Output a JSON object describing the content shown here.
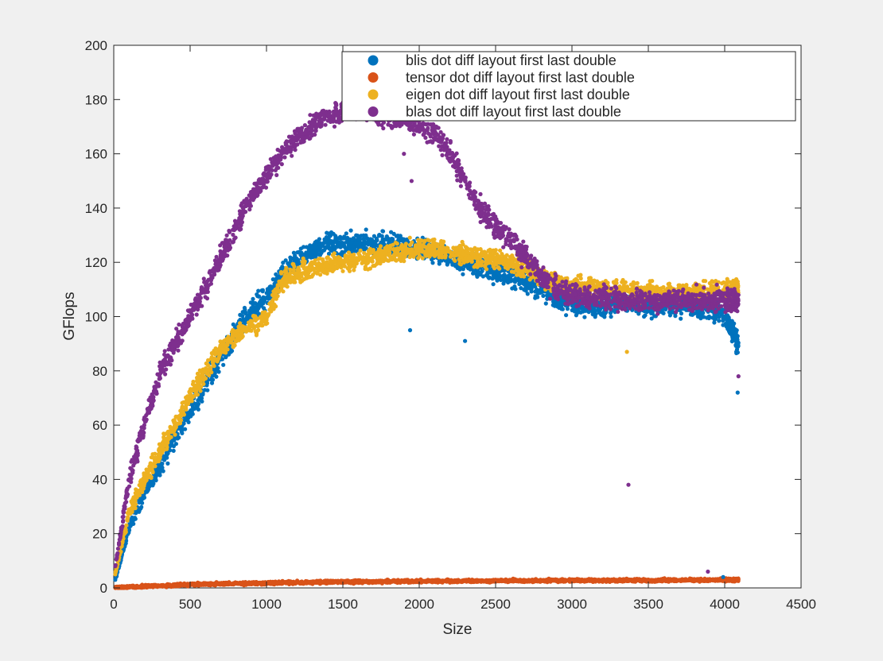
{
  "chart_data": {
    "type": "scatter",
    "xlabel": "Size",
    "ylabel": "GFlops",
    "xlim": [
      0,
      4500
    ],
    "ylim": [
      0,
      200
    ],
    "xticks": [
      0,
      500,
      1000,
      1500,
      2000,
      2500,
      3000,
      3500,
      4000,
      4500
    ],
    "yticks": [
      0,
      20,
      40,
      60,
      80,
      100,
      120,
      140,
      160,
      180,
      200
    ],
    "grid": false,
    "legend_position": "top-right",
    "series": [
      {
        "name": "blis dot diff layout first last double",
        "color": "#0072bd",
        "x": [
          10,
          100,
          200,
          300,
          400,
          500,
          600,
          700,
          800,
          900,
          1000,
          1100,
          1200,
          1300,
          1400,
          1500,
          1600,
          1700,
          1800,
          1900,
          2000,
          2100,
          2200,
          2300,
          2400,
          2500,
          2600,
          2700,
          2800,
          2900,
          3000,
          3100,
          3200,
          3300,
          3400,
          3500,
          3600,
          3700,
          3800,
          3900,
          4000,
          4050,
          4090
        ],
        "y": [
          3,
          22,
          35,
          45,
          56,
          65,
          76,
          85,
          94,
          102,
          107,
          115,
          120,
          124,
          127,
          126,
          127,
          127,
          127,
          126,
          125,
          124,
          122,
          120,
          118,
          117,
          115,
          113,
          110,
          107,
          105,
          104,
          104,
          105,
          105,
          104,
          104,
          104,
          104,
          103,
          100,
          95,
          90
        ]
      },
      {
        "name": "tensor dot diff layout first last double",
        "color": "#d95319",
        "x": [
          10,
          100,
          200,
          300,
          400,
          500,
          600,
          700,
          800,
          900,
          1000,
          1100,
          1200,
          1300,
          1400,
          1500,
          1600,
          1700,
          1800,
          1900,
          2000,
          2100,
          2200,
          2300,
          2400,
          2500,
          2600,
          2700,
          2800,
          2900,
          3000,
          3100,
          3200,
          3300,
          3400,
          3500,
          3600,
          3700,
          3800,
          3900,
          4000,
          4050,
          4090
        ],
        "y": [
          0.1,
          0.3,
          0.6,
          0.8,
          1.0,
          1.2,
          1.4,
          1.5,
          1.6,
          1.7,
          1.8,
          1.9,
          2.0,
          2.1,
          2.2,
          2.2,
          2.3,
          2.3,
          2.4,
          2.4,
          2.5,
          2.5,
          2.5,
          2.6,
          2.6,
          2.6,
          2.7,
          2.7,
          2.7,
          2.7,
          2.8,
          2.8,
          2.8,
          2.8,
          2.8,
          2.8,
          2.9,
          2.9,
          2.9,
          2.9,
          2.9,
          2.9,
          3.0
        ]
      },
      {
        "name": "eigen dot diff layout first last double",
        "color": "#edb120",
        "x": [
          10,
          100,
          200,
          300,
          400,
          500,
          600,
          700,
          800,
          900,
          1000,
          1100,
          1200,
          1300,
          1400,
          1500,
          1600,
          1700,
          1800,
          1900,
          2000,
          2100,
          2200,
          2300,
          2400,
          2500,
          2600,
          2700,
          2800,
          2900,
          3000,
          3100,
          3200,
          3300,
          3400,
          3500,
          3600,
          3700,
          3800,
          3900,
          4000,
          4050,
          4090
        ],
        "y": [
          5,
          28,
          40,
          50,
          60,
          70,
          80,
          88,
          93,
          97,
          100,
          113,
          116,
          118,
          119,
          120,
          121,
          122,
          123,
          124,
          125,
          125,
          124,
          123,
          122,
          121,
          120,
          118,
          115,
          112,
          111,
          111,
          110,
          110,
          109,
          109,
          109,
          109,
          109,
          109,
          110,
          110,
          110
        ]
      },
      {
        "name": "blas dot diff layout first last double",
        "color": "#7e2f8e",
        "x": [
          10,
          100,
          200,
          300,
          400,
          500,
          600,
          700,
          800,
          900,
          1000,
          1100,
          1200,
          1300,
          1400,
          1500,
          1600,
          1700,
          1800,
          1900,
          2000,
          2100,
          2200,
          2300,
          2400,
          2500,
          2600,
          2700,
          2800,
          2900,
          3000,
          3100,
          3200,
          3300,
          3400,
          3500,
          3600,
          3700,
          3800,
          3900,
          4000,
          4050,
          4090
        ],
        "y": [
          8,
          40,
          60,
          78,
          90,
          100,
          110,
          122,
          133,
          144,
          152,
          160,
          166,
          170,
          174,
          176,
          177,
          175,
          173,
          172,
          171,
          168,
          160,
          150,
          140,
          133,
          128,
          122,
          115,
          110,
          108,
          107,
          107,
          106,
          106,
          106,
          106,
          106,
          106,
          106,
          106,
          106,
          106
        ]
      }
    ],
    "outliers": [
      {
        "series": 3,
        "x": 3370,
        "y": 38
      },
      {
        "series": 0,
        "x": 3990,
        "y": 4
      },
      {
        "series": 3,
        "x": 4090,
        "y": 78
      },
      {
        "series": 0,
        "x": 4085,
        "y": 72
      },
      {
        "series": 2,
        "x": 3360,
        "y": 87
      },
      {
        "series": 3,
        "x": 1900,
        "y": 160
      },
      {
        "series": 3,
        "x": 1950,
        "y": 150
      },
      {
        "series": 0,
        "x": 1940,
        "y": 95
      },
      {
        "series": 0,
        "x": 2300,
        "y": 91
      },
      {
        "series": 3,
        "x": 3890,
        "y": 6
      }
    ]
  }
}
